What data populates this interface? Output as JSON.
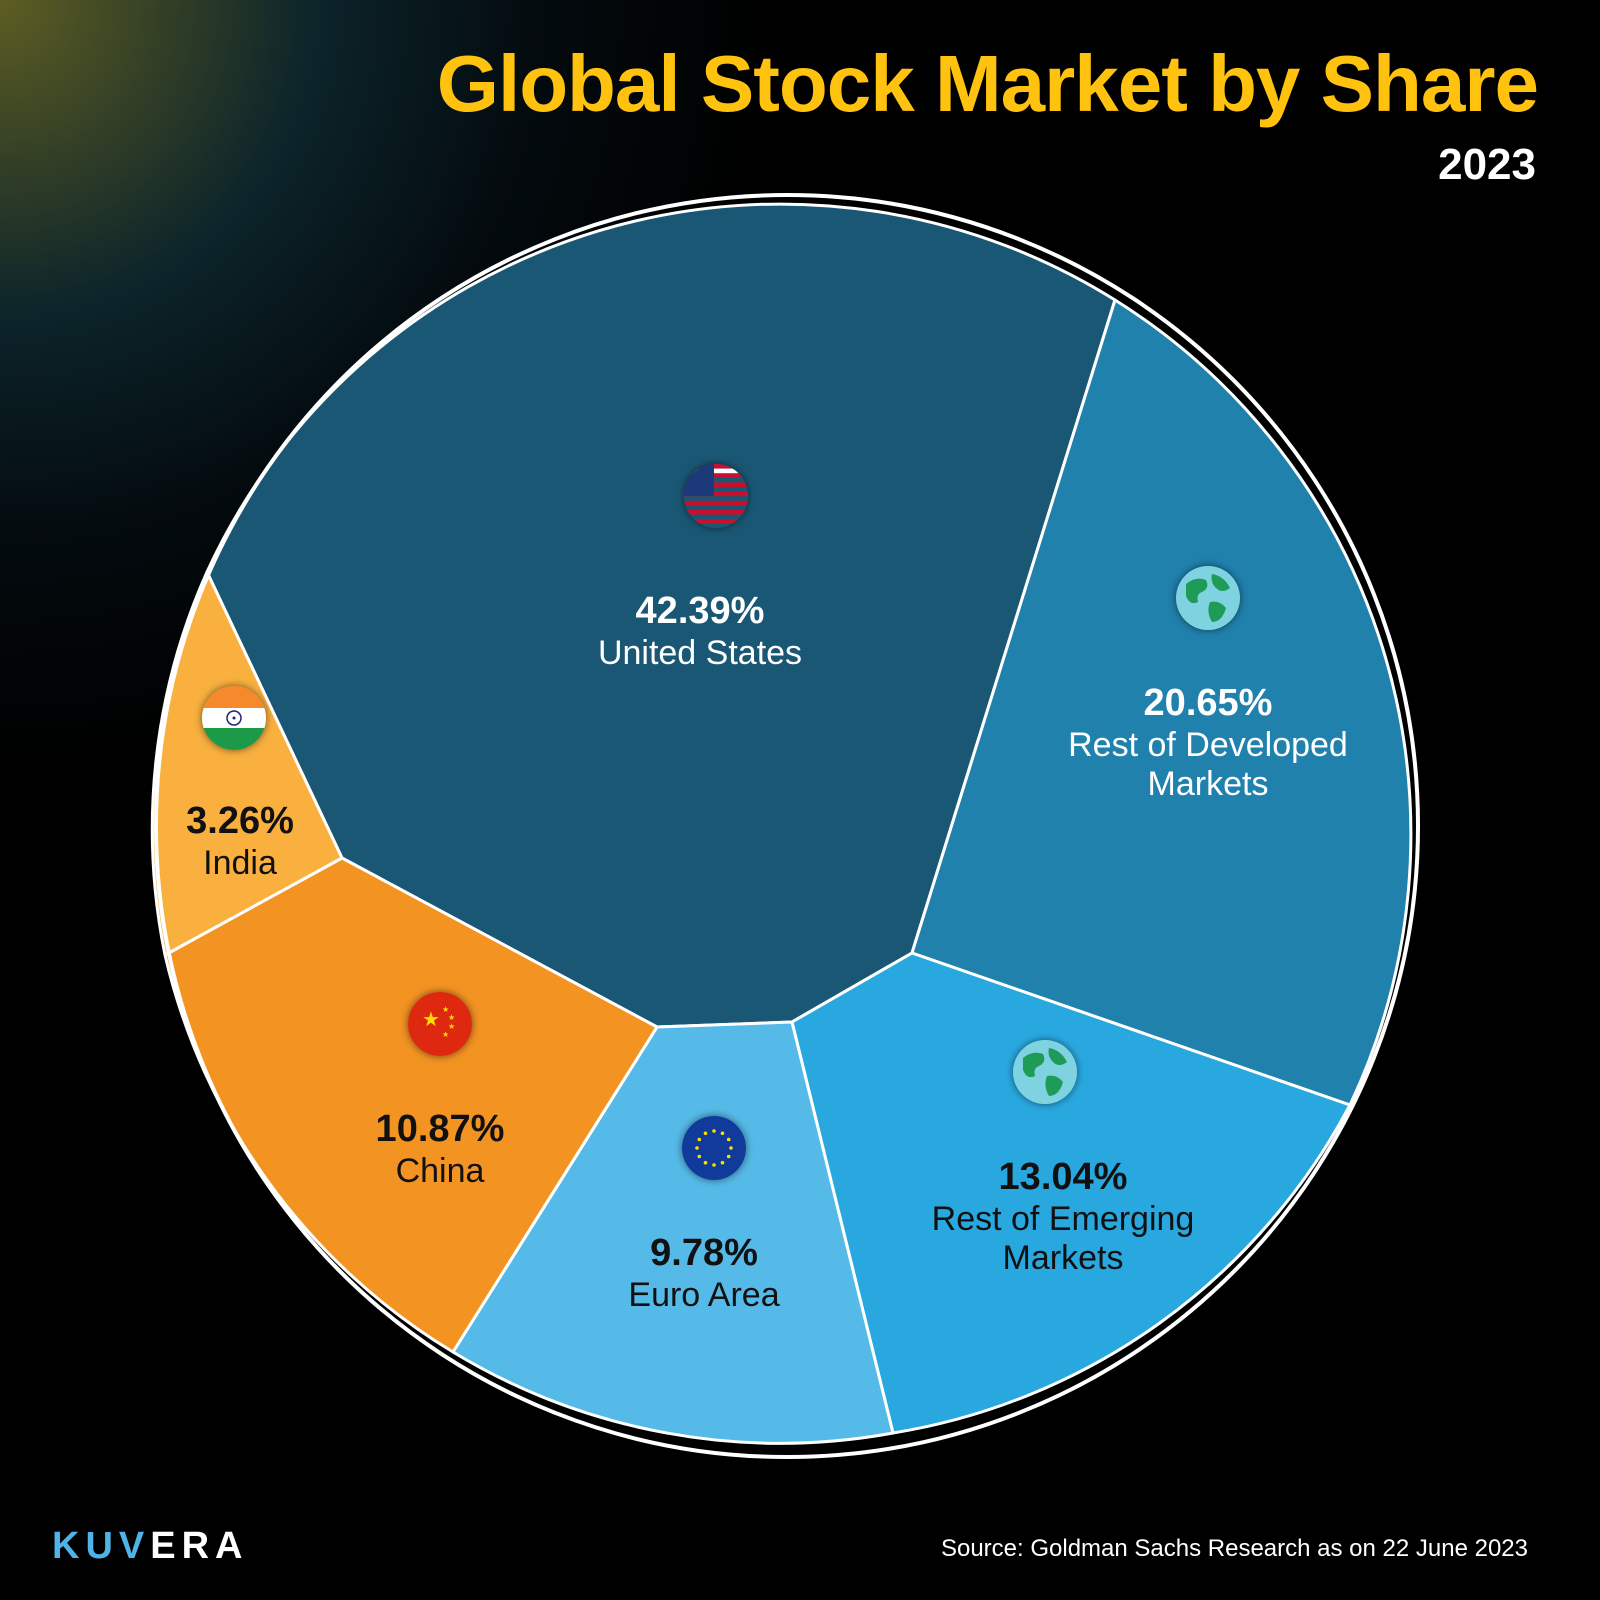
{
  "header": {
    "title": "Global Stock Market by Share",
    "subtitle": "2023"
  },
  "chart_data": {
    "type": "pie",
    "title": "Global Stock Market by Share",
    "subtitle": "2023",
    "slices": [
      {
        "label": "United States",
        "value": 42.39,
        "value_label": "42.39%",
        "color": "#1a5774",
        "icon": "us-flag-icon",
        "text_color": "#ffffff"
      },
      {
        "label": "Rest of Developed Markets",
        "value": 20.65,
        "value_label": "20.65%",
        "color": "#2181ad",
        "icon": "globe-icon",
        "text_color": "#ffffff"
      },
      {
        "label": "Rest of Emerging Markets",
        "value": 13.04,
        "value_label": "13.04%",
        "color": "#29a8e0",
        "icon": "globe-icon",
        "text_color": "#111111"
      },
      {
        "label": "Euro Area",
        "value": 9.78,
        "value_label": "9.78%",
        "color": "#56bae8",
        "icon": "eu-flag-icon",
        "text_color": "#111111"
      },
      {
        "label": "China",
        "value": 10.87,
        "value_label": "10.87%",
        "color": "#f39322",
        "icon": "china-flag-icon",
        "text_color": "#111111"
      },
      {
        "label": "India",
        "value": 3.26,
        "value_label": "3.26%",
        "color": "#f9b03f",
        "icon": "india-flag-icon",
        "text_color": "#111111"
      }
    ]
  },
  "footer": {
    "logo": "KUVERA",
    "source": "Source: Goldman Sachs Research as on 22 June 2023"
  }
}
